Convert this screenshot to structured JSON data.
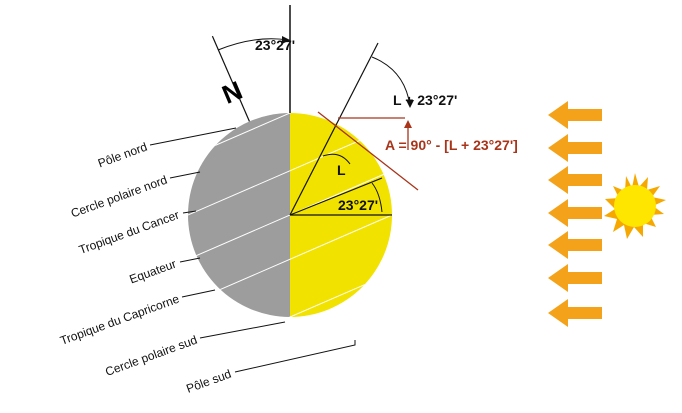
{
  "angle_top": "23°27'",
  "north": "N",
  "formula_top": "L + 23°27'",
  "formula_a": "A = 90° - [L + 23°27']",
  "latitude": "L",
  "tilt": "23°27'",
  "labels": [
    "Pôle nord",
    "Cercle polaire nord",
    "Tropique du Cancer",
    "Equateur",
    "Tropique du Capricorne",
    "Cercle polaire sud",
    "Pôle sud"
  ]
}
